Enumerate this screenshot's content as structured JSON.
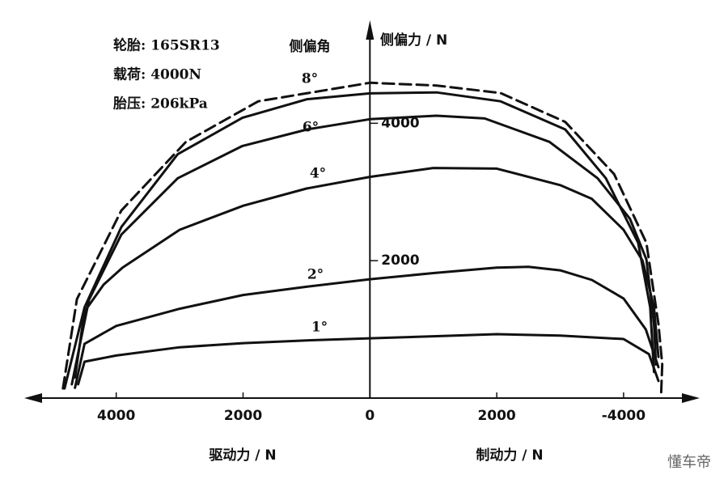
{
  "chart_data": {
    "type": "line",
    "annotations": [
      "轮胎: 165SR13",
      "载荷: 4000N",
      "胎压: 206kPa"
    ],
    "legend_title": "侧偏角",
    "y_label": "侧偏力 / N",
    "x_label_left": "驱动力 / N",
    "x_label_right": "制动力 / N",
    "watermark": "懂车帝",
    "xlim": [
      -5450,
      5200
    ],
    "ylim": [
      0,
      5500
    ],
    "xticks": [
      {
        "value": -4000,
        "label": "4000"
      },
      {
        "value": -2000,
        "label": "2000"
      },
      0,
      2000,
      {
        "value": 4000,
        "label": "-4000"
      }
    ],
    "yticks": [
      2000,
      4000
    ],
    "series": [
      {
        "name": "1°",
        "color": "#111111",
        "dash": false,
        "x": [
          -4600,
          -4500,
          -4000,
          -3000,
          -2000,
          -1000,
          0,
          1000,
          2000,
          3000,
          4000,
          4400,
          4550
        ],
        "values": [
          200,
          530,
          620,
          740,
          800,
          840,
          870,
          900,
          930,
          910,
          860,
          640,
          250
        ]
      },
      {
        "name": "2°",
        "color": "#111111",
        "dash": false,
        "x": [
          -4650,
          -4500,
          -4000,
          -3000,
          -2000,
          -1000,
          0,
          1000,
          2000,
          2500,
          3000,
          3500,
          4000,
          4350,
          4550
        ],
        "values": [
          150,
          790,
          1050,
          1300,
          1500,
          1620,
          1730,
          1820,
          1900,
          1910,
          1860,
          1720,
          1450,
          1000,
          450
        ]
      },
      {
        "name": "4°",
        "color": "#111111",
        "dash": false,
        "x": [
          -4650,
          -4500,
          -4200,
          -3900,
          -3000,
          -2000,
          -1000,
          0,
          1000,
          2000,
          3000,
          3500,
          4000,
          4300,
          4480,
          4550
        ],
        "values": [
          300,
          1260,
          1650,
          1900,
          2450,
          2800,
          3050,
          3220,
          3350,
          3340,
          3100,
          2900,
          2450,
          2000,
          1320,
          600
        ]
      },
      {
        "name": "6°",
        "color": "#111111",
        "dash": false,
        "x": [
          -4700,
          -4430,
          -3920,
          -3030,
          -2010,
          -990,
          0,
          1050,
          1810,
          2830,
          3590,
          4100,
          4360,
          4480,
          4510
        ],
        "values": [
          200,
          1430,
          2380,
          3200,
          3670,
          3910,
          4060,
          4110,
          4070,
          3730,
          3200,
          2610,
          2020,
          1080,
          490
        ]
      },
      {
        "name": "8°",
        "color": "#111111",
        "dash": false,
        "x": [
          -4815,
          -4500,
          -3920,
          -3030,
          -2010,
          -990,
          0,
          1050,
          2060,
          3080,
          3720,
          4230,
          4420,
          4480
        ],
        "values": [
          140,
          1320,
          2490,
          3550,
          4080,
          4350,
          4435,
          4450,
          4320,
          3910,
          3200,
          2260,
          1320,
          380
        ]
      },
      {
        "color": "#111111",
        "dash": true,
        "x": [
          -4840,
          -4620,
          -3920,
          -2900,
          -1760,
          0,
          1050,
          2060,
          3080,
          3850,
          4360,
          4550,
          4610,
          4590
        ],
        "values": [
          140,
          1440,
          2730,
          3730,
          4320,
          4590,
          4550,
          4440,
          4020,
          3260,
          2260,
          1080,
          490,
          20
        ]
      }
    ]
  }
}
